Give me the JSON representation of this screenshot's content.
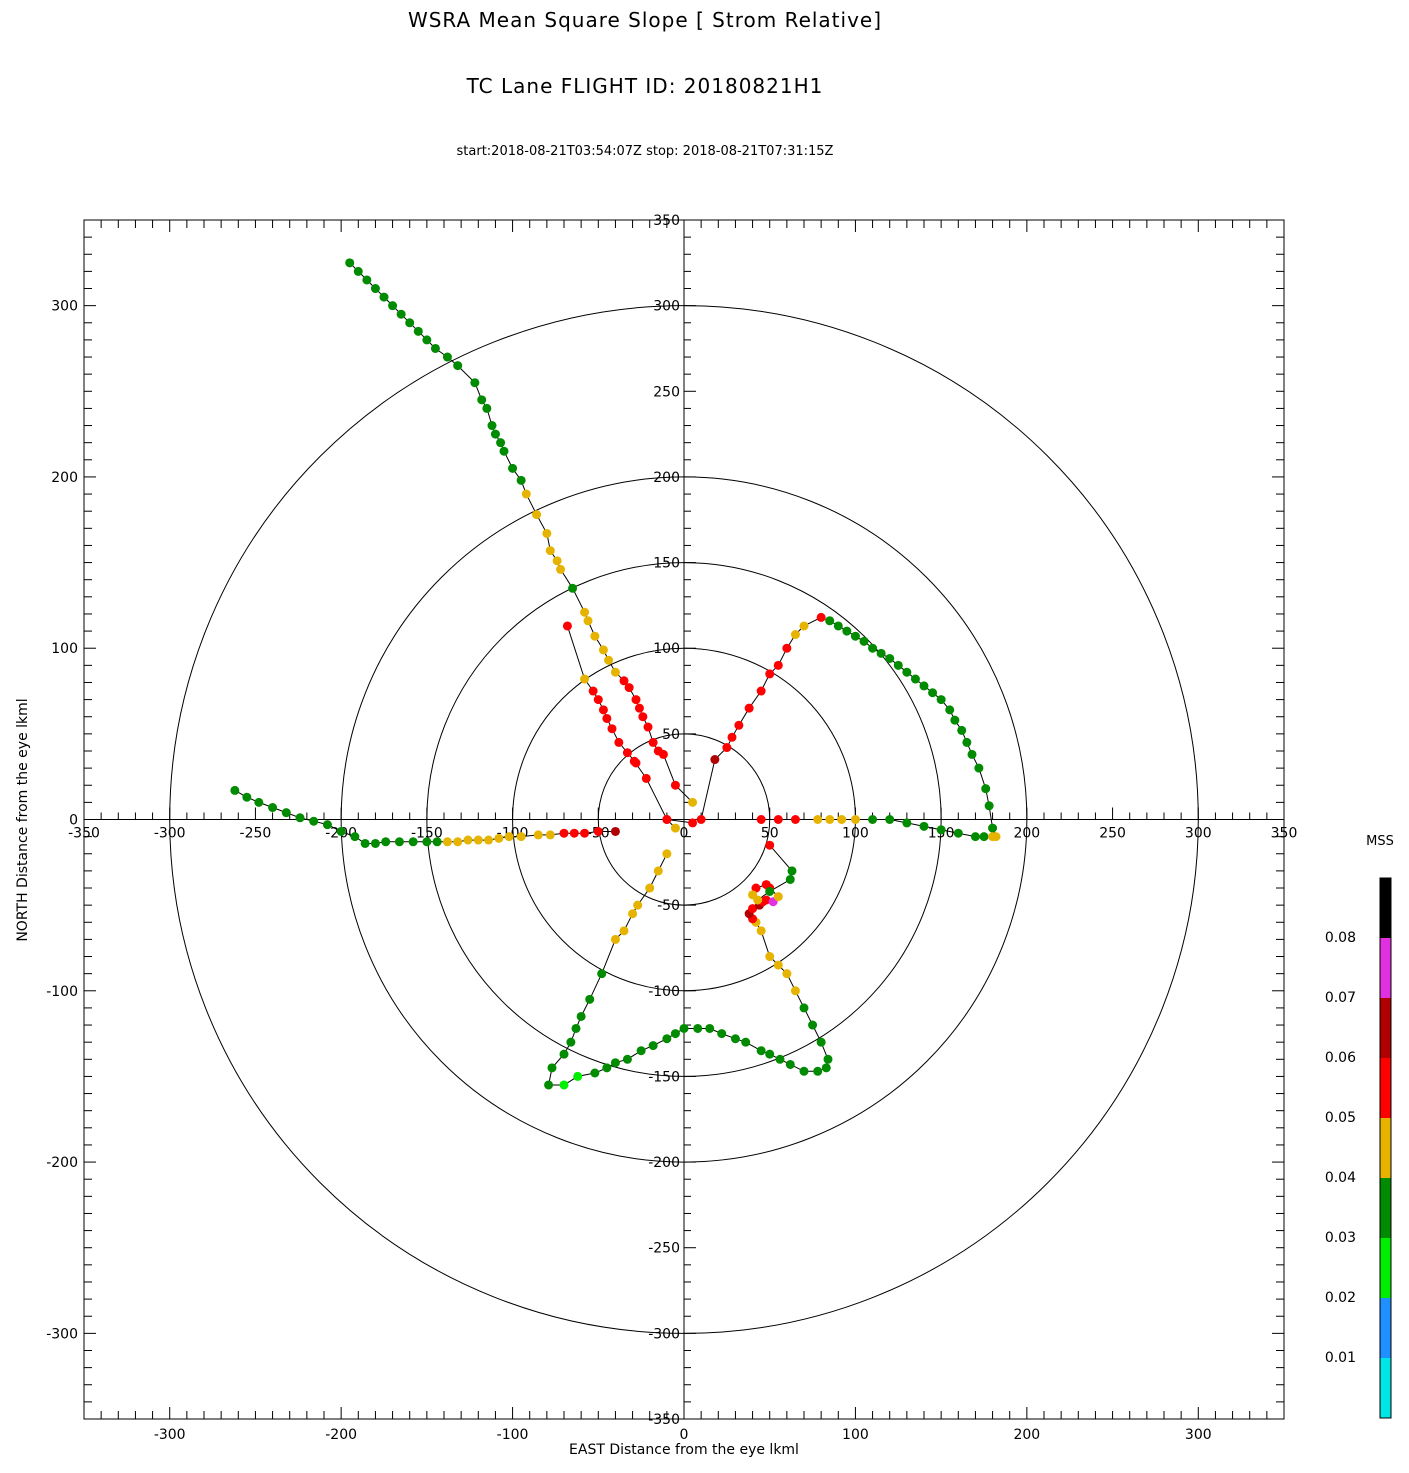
{
  "header": {
    "title": "WSRA Mean Square Slope [ Strom Relative]",
    "flight": "TC Lane FLIGHT ID: 20180821H1",
    "times": "start:2018-08-21T03:54:07Z stop: 2018-08-21T07:31:15Z"
  },
  "chart_data": {
    "type": "scatter",
    "title": "WSRA Mean Square Slope [ Strom Relative]",
    "xlabel": "EAST Distance from the eye lkml",
    "ylabel": "NORTH Distance from the eye lkml",
    "xlim": [
      -350,
      350
    ],
    "ylim": [
      -350,
      350
    ],
    "xticks": [
      -300,
      -200,
      -100,
      0,
      100,
      200,
      300
    ],
    "yticks": [
      -300,
      -200,
      -100,
      0,
      100,
      200,
      300
    ],
    "inner_ticks": [
      -350,
      -300,
      -250,
      -200,
      -150,
      -100,
      -50,
      0,
      50,
      100,
      150,
      200,
      250,
      300,
      350
    ],
    "range_rings": [
      50,
      100,
      150,
      200,
      300
    ],
    "grid": false,
    "colorbar": {
      "title": "MSS",
      "ticks": [
        "0.08",
        "0.07",
        "0.06",
        "0.05",
        "0.04",
        "0.03",
        "0.02",
        "0.01"
      ],
      "bands": [
        "#00e5e5",
        "#1e90ff",
        "#00ee00",
        "#008b00",
        "#e6b400",
        "#ff0000",
        "#b00000",
        "#e030e0",
        "#000000"
      ]
    },
    "colors": {
      "g": "#008b00",
      "y": "#e6b400",
      "r": "#ff0000",
      "d": "#b00000",
      "l": "#00ee00",
      "m": "#e030e0"
    },
    "legs": [
      [
        [
          -195,
          325,
          "g"
        ],
        [
          -190,
          320,
          "g"
        ],
        [
          -185,
          315,
          "g"
        ],
        [
          -180,
          310,
          "g"
        ],
        [
          -175,
          305,
          "g"
        ],
        [
          -170,
          300,
          "g"
        ],
        [
          -165,
          295,
          "g"
        ],
        [
          -160,
          290,
          "g"
        ],
        [
          -155,
          285,
          "g"
        ],
        [
          -150,
          280,
          "g"
        ],
        [
          -145,
          275,
          "g"
        ],
        [
          -138,
          270,
          "g"
        ],
        [
          -132,
          265,
          "g"
        ],
        [
          -122,
          255,
          "g"
        ],
        [
          -118,
          245,
          "g"
        ],
        [
          -115,
          240,
          "g"
        ],
        [
          -112,
          230,
          "g"
        ],
        [
          -110,
          225,
          "g"
        ],
        [
          -107,
          220,
          "g"
        ],
        [
          -105,
          215,
          "g"
        ],
        [
          -100,
          205,
          "g"
        ],
        [
          -95,
          198,
          "g"
        ],
        [
          -92,
          190,
          "y"
        ],
        [
          -86,
          178,
          "y"
        ],
        [
          -80,
          167,
          "y"
        ],
        [
          -78,
          157,
          "y"
        ],
        [
          -74,
          151,
          "y"
        ],
        [
          -72,
          146,
          "y"
        ],
        [
          -65,
          135,
          "g"
        ],
        [
          -58,
          121,
          "y"
        ],
        [
          -56,
          116,
          "y"
        ],
        [
          -52,
          107,
          "y"
        ],
        [
          -47,
          99,
          "y"
        ],
        [
          -44,
          93,
          "y"
        ],
        [
          -40,
          86,
          "y"
        ],
        [
          -35,
          81,
          "r"
        ],
        [
          -32,
          77,
          "r"
        ],
        [
          -28,
          70,
          "r"
        ],
        [
          -26,
          65,
          "r"
        ],
        [
          -24,
          60,
          "r"
        ],
        [
          -21,
          54,
          "r"
        ],
        [
          -18,
          45,
          "r"
        ],
        [
          -15,
          40,
          "r"
        ],
        [
          -12,
          38,
          "r"
        ],
        [
          -5,
          20,
          "r"
        ],
        [
          5,
          10,
          "y"
        ]
      ],
      [
        [
          -68,
          113,
          "r"
        ],
        [
          -58,
          82,
          "y"
        ],
        [
          -53,
          75,
          "r"
        ],
        [
          -50,
          70,
          "r"
        ],
        [
          -47,
          64,
          "r"
        ],
        [
          -45,
          59,
          "r"
        ],
        [
          -42,
          53,
          "r"
        ],
        [
          -38,
          45,
          "r"
        ],
        [
          -33,
          39,
          "r"
        ],
        [
          -28,
          33,
          "r"
        ],
        [
          -29,
          34,
          "r"
        ],
        [
          -22,
          24,
          "r"
        ],
        [
          -10,
          0,
          "r"
        ],
        [
          -5,
          -5,
          "y"
        ]
      ],
      [
        [
          -262,
          17,
          "g"
        ],
        [
          -255,
          13,
          "g"
        ],
        [
          -248,
          10,
          "g"
        ],
        [
          -240,
          7,
          "g"
        ],
        [
          -232,
          4,
          "g"
        ],
        [
          -224,
          1,
          "g"
        ],
        [
          -216,
          -1,
          "g"
        ],
        [
          -208,
          -3,
          "g"
        ],
        [
          -200,
          -7,
          "g"
        ],
        [
          -192,
          -10,
          "g"
        ],
        [
          -186,
          -14,
          "g"
        ],
        [
          -180,
          -14,
          "g"
        ],
        [
          -174,
          -13,
          "g"
        ],
        [
          -166,
          -13,
          "g"
        ],
        [
          -158,
          -13,
          "g"
        ],
        [
          -150,
          -13,
          "g"
        ],
        [
          -144,
          -13,
          "g"
        ],
        [
          -138,
          -13,
          "y"
        ],
        [
          -132,
          -13,
          "y"
        ],
        [
          -126,
          -12,
          "y"
        ],
        [
          -120,
          -12,
          "y"
        ],
        [
          -114,
          -12,
          "y"
        ],
        [
          -108,
          -11,
          "y"
        ],
        [
          -102,
          -10,
          "y"
        ],
        [
          -95,
          -10,
          "y"
        ],
        [
          -85,
          -9,
          "y"
        ],
        [
          -78,
          -9,
          "y"
        ],
        [
          -70,
          -8,
          "r"
        ],
        [
          -64,
          -8,
          "r"
        ],
        [
          -58,
          -8,
          "r"
        ],
        [
          -50,
          -7,
          "r"
        ],
        [
          -40,
          -7,
          "d"
        ]
      ],
      [
        [
          -10,
          -20,
          "y"
        ],
        [
          -15,
          -30,
          "y"
        ],
        [
          -20,
          -40,
          "y"
        ],
        [
          -27,
          -50,
          "y"
        ],
        [
          -30,
          -55,
          "y"
        ],
        [
          -35,
          -65,
          "y"
        ],
        [
          -40,
          -70,
          "y"
        ],
        [
          -48,
          -90,
          "g"
        ],
        [
          -55,
          -105,
          "g"
        ],
        [
          -60,
          -115,
          "g"
        ],
        [
          -63,
          -122,
          "g"
        ],
        [
          -66,
          -130,
          "g"
        ],
        [
          -70,
          -137,
          "g"
        ],
        [
          -77,
          -145,
          "g"
        ],
        [
          -79,
          -155,
          "g"
        ],
        [
          -70,
          -155,
          "l"
        ],
        [
          -62,
          -150,
          "l"
        ],
        [
          -52,
          -148,
          "g"
        ],
        [
          -45,
          -145,
          "g"
        ],
        [
          -40,
          -142,
          "g"
        ],
        [
          -33,
          -140,
          "g"
        ],
        [
          -25,
          -135,
          "g"
        ],
        [
          -18,
          -132,
          "g"
        ],
        [
          -10,
          -128,
          "g"
        ],
        [
          -5,
          -125,
          "g"
        ],
        [
          0,
          -122,
          "g"
        ],
        [
          8,
          -122,
          "g"
        ],
        [
          15,
          -122,
          "g"
        ],
        [
          22,
          -125,
          "g"
        ],
        [
          30,
          -128,
          "g"
        ],
        [
          36,
          -130,
          "g"
        ],
        [
          45,
          -135,
          "g"
        ],
        [
          50,
          -137,
          "g"
        ],
        [
          56,
          -140,
          "g"
        ],
        [
          62,
          -143,
          "g"
        ],
        [
          70,
          -147,
          "g"
        ],
        [
          78,
          -147,
          "g"
        ],
        [
          83,
          -145,
          "g"
        ],
        [
          84,
          -140,
          "g"
        ],
        [
          80,
          -130,
          "g"
        ],
        [
          75,
          -120,
          "g"
        ],
        [
          70,
          -110,
          "g"
        ],
        [
          65,
          -100,
          "y"
        ],
        [
          60,
          -90,
          "y"
        ],
        [
          55,
          -85,
          "y"
        ],
        [
          50,
          -80,
          "y"
        ],
        [
          45,
          -65,
          "y"
        ],
        [
          42,
          -60,
          "y"
        ],
        [
          40,
          -58,
          "r"
        ],
        [
          38,
          -55,
          "d"
        ],
        [
          40,
          -52,
          "r"
        ],
        [
          44,
          -50,
          "d"
        ],
        [
          46,
          -48,
          "r"
        ],
        [
          48,
          -47,
          "r"
        ],
        [
          52,
          -48,
          "m"
        ],
        [
          55,
          -45,
          "y"
        ],
        [
          50,
          -40,
          "r"
        ],
        [
          48,
          -38,
          "r"
        ],
        [
          42,
          -40,
          "r"
        ],
        [
          40,
          -44,
          "y"
        ],
        [
          43,
          -47,
          "y"
        ],
        [
          50,
          -42,
          "g"
        ],
        [
          62,
          -35,
          "g"
        ],
        [
          63,
          -30,
          "g"
        ],
        [
          50,
          -15,
          "r"
        ]
      ],
      [
        [
          -10,
          0,
          "r"
        ],
        [
          5,
          -2,
          "r"
        ]
      ],
      [
        [
          10,
          0,
          "r"
        ],
        [
          18,
          35,
          "d"
        ],
        [
          25,
          42,
          "r"
        ],
        [
          28,
          48,
          "r"
        ],
        [
          32,
          55,
          "r"
        ],
        [
          38,
          65,
          "r"
        ],
        [
          45,
          75,
          "r"
        ],
        [
          50,
          85,
          "r"
        ],
        [
          55,
          90,
          "r"
        ],
        [
          60,
          100,
          "r"
        ],
        [
          65,
          108,
          "y"
        ],
        [
          70,
          113,
          "y"
        ],
        [
          80,
          118,
          "r"
        ],
        [
          85,
          116,
          "g"
        ],
        [
          90,
          113,
          "g"
        ],
        [
          95,
          110,
          "g"
        ],
        [
          100,
          107,
          "g"
        ],
        [
          105,
          104,
          "g"
        ],
        [
          110,
          100,
          "g"
        ],
        [
          115,
          97,
          "g"
        ],
        [
          120,
          94,
          "g"
        ],
        [
          125,
          90,
          "g"
        ],
        [
          130,
          86,
          "g"
        ],
        [
          135,
          82,
          "g"
        ],
        [
          140,
          78,
          "g"
        ],
        [
          145,
          74,
          "g"
        ],
        [
          150,
          70,
          "g"
        ],
        [
          155,
          64,
          "g"
        ],
        [
          158,
          58,
          "g"
        ],
        [
          162,
          52,
          "g"
        ],
        [
          165,
          45,
          "g"
        ],
        [
          168,
          38,
          "g"
        ],
        [
          172,
          30,
          "g"
        ],
        [
          176,
          18,
          "g"
        ],
        [
          178,
          8,
          "g"
        ],
        [
          180,
          -5,
          "g"
        ],
        [
          182,
          -10,
          "y"
        ]
      ],
      [
        [
          45,
          0,
          "r"
        ],
        [
          55,
          0,
          "r"
        ],
        [
          65,
          0,
          "r"
        ],
        [
          78,
          0,
          "y"
        ],
        [
          85,
          0,
          "y"
        ],
        [
          92,
          0,
          "y"
        ],
        [
          100,
          0,
          "y"
        ],
        [
          110,
          0,
          "g"
        ],
        [
          120,
          0,
          "g"
        ],
        [
          130,
          -2,
          "g"
        ],
        [
          140,
          -4,
          "g"
        ],
        [
          150,
          -6,
          "g"
        ],
        [
          160,
          -8,
          "g"
        ],
        [
          170,
          -10,
          "g"
        ],
        [
          175,
          -10,
          "g"
        ],
        [
          180,
          -10,
          "y"
        ]
      ]
    ]
  }
}
